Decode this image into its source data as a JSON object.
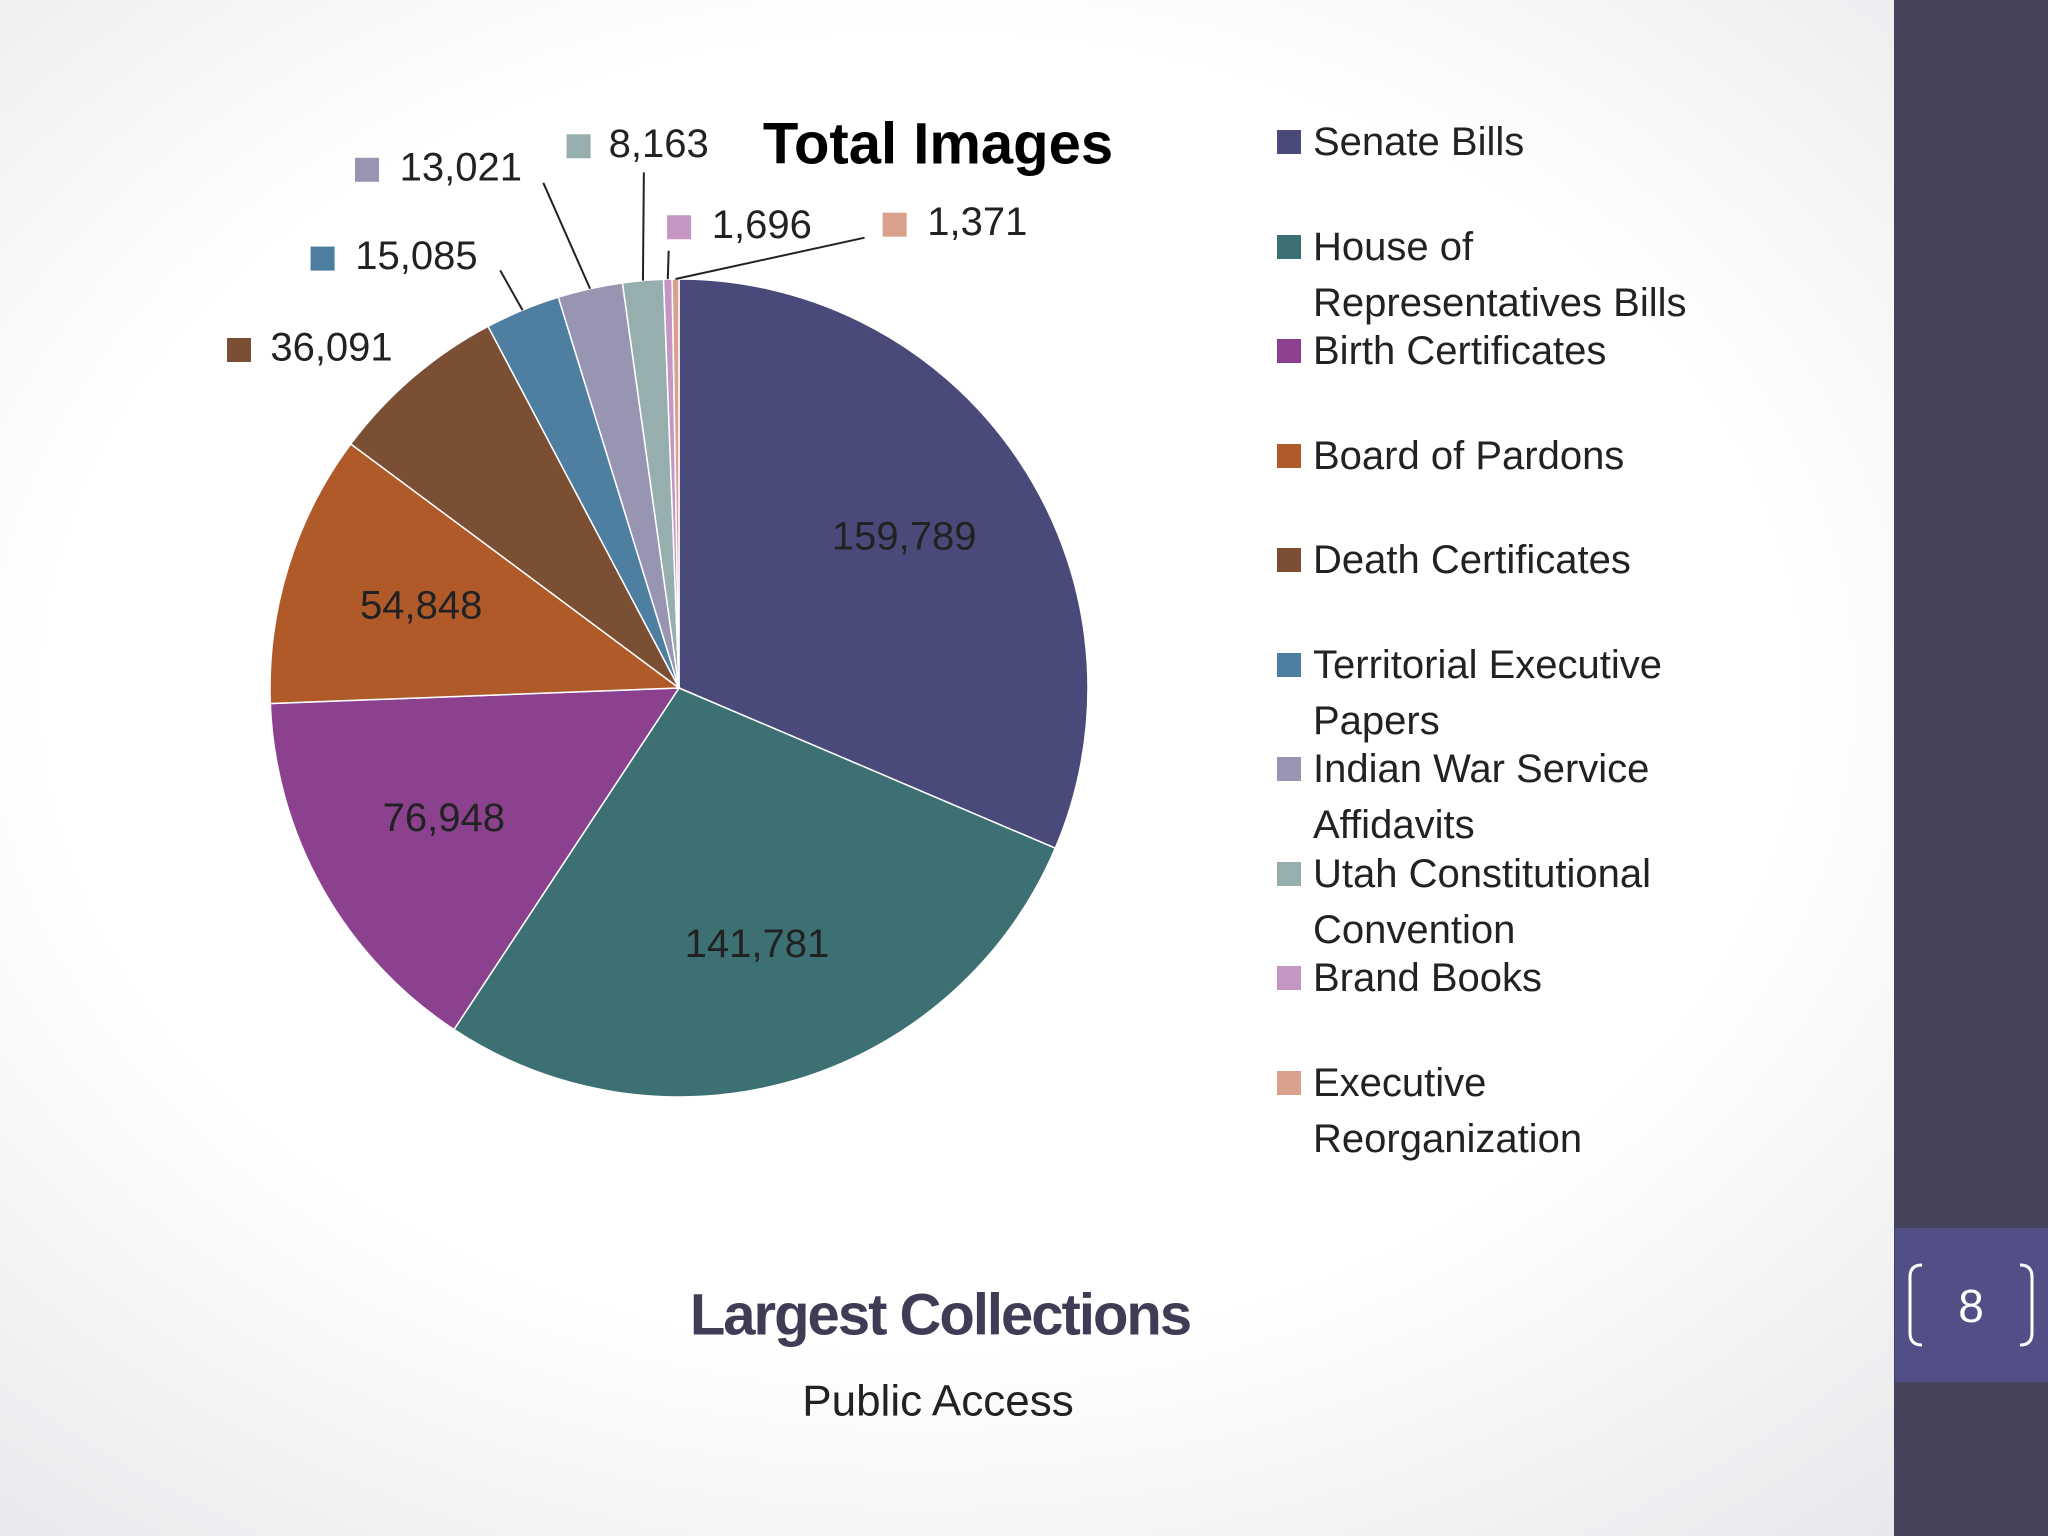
{
  "chart_data": {
    "type": "pie",
    "title": "Total Images",
    "categories": [
      "Senate Bills",
      "House of Representatives Bills",
      "Birth Certificates",
      "Board of Pardons",
      "Death Certificates",
      "Territorial Executive Papers",
      "Indian War Service Affidavits",
      "Utah Constitutional Convention",
      "Brand Books",
      "Executive Reorganization"
    ],
    "values": [
      159789,
      141781,
      76948,
      54848,
      36091,
      15085,
      13021,
      8163,
      1696,
      1371
    ],
    "value_labels": [
      "159,789",
      "141,781",
      "76,948",
      "54,848",
      "36,091",
      "15,085",
      "13,021",
      "8,163",
      "1,696",
      "1,371"
    ],
    "colors": [
      "#4a4a7a",
      "#3d7073",
      "#8b418e",
      "#b05a29",
      "#7a4f33",
      "#4e7fa0",
      "#9795b1",
      "#96afae",
      "#c596c4",
      "#d9a08c"
    ]
  },
  "slide": {
    "title": "Largest Collections",
    "subtitle": "Public Access",
    "number": 8
  }
}
